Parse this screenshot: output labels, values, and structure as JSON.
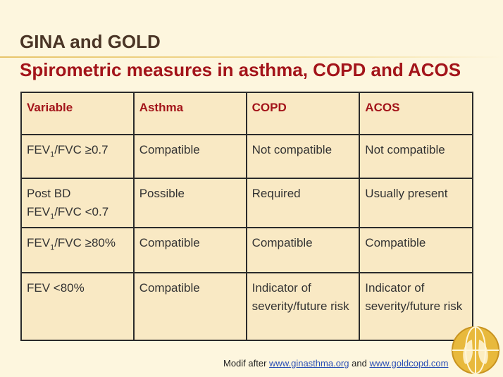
{
  "header": {
    "title": "GINA and GOLD",
    "subtitle": "Spirometric measures in asthma, COPD and ACOS"
  },
  "table": {
    "header": [
      "Variable",
      "Asthma",
      "COPD",
      "ACOS"
    ],
    "rows": [
      [
        {
          "before": "FEV",
          "sub": "1",
          "after": "/FVC ≥0.7"
        },
        "Compatible",
        "Not compatible",
        "Not compatible"
      ],
      [
        {
          "before": "Post BD FEV",
          "sub": "1",
          "after": "/FVC <0.7"
        },
        "Possible",
        "Required",
        "Usually present"
      ],
      [
        {
          "before": "FEV",
          "sub": "1",
          "after": "/FVC ≥80%"
        },
        "Compatible",
        "Compatible",
        "Compatible"
      ],
      [
        "FEV <80%",
        "Compatible",
        "Indicator of severity/future risk",
        "Indicator of severity/future risk"
      ]
    ]
  },
  "footer": {
    "prefix": "Modif after",
    "link1": "www.ginasthma.org",
    "joiner": "and",
    "link2": "www.goldcopd.com"
  }
}
